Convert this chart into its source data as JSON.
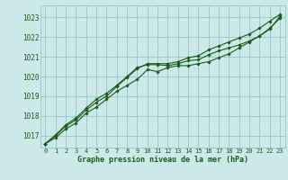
{
  "xlabel": "Graphe pression niveau de la mer (hPa)",
  "bg_color": "#cce8e8",
  "plot_bg_color": "#cce8e8",
  "grid_color": "#99cccc",
  "line_color": "#1a5c1a",
  "text_color": "#1a5c1a",
  "xlim": [
    -0.5,
    23.5
  ],
  "ylim": [
    1016.4,
    1023.6
  ],
  "yticks": [
    1017,
    1018,
    1019,
    1020,
    1021,
    1022,
    1023
  ],
  "xticks": [
    0,
    1,
    2,
    3,
    4,
    5,
    6,
    7,
    8,
    9,
    10,
    11,
    12,
    13,
    14,
    15,
    16,
    17,
    18,
    19,
    20,
    21,
    22,
    23
  ],
  "series": [
    [
      1016.6,
      1016.9,
      1017.35,
      1017.65,
      1018.15,
      1018.45,
      1018.85,
      1019.25,
      1019.55,
      1019.85,
      1020.35,
      1020.25,
      1020.45,
      1020.55,
      1020.55,
      1020.65,
      1020.75,
      1020.95,
      1021.15,
      1021.45,
      1021.75,
      1022.05,
      1022.45,
      1022.95
    ],
    [
      1016.6,
      1017.0,
      1017.5,
      1017.8,
      1018.3,
      1018.7,
      1019.0,
      1019.5,
      1019.95,
      1020.4,
      1020.65,
      1020.65,
      1020.65,
      1020.75,
      1020.95,
      1021.05,
      1021.35,
      1021.55,
      1021.75,
      1021.95,
      1022.15,
      1022.45,
      1022.8,
      1023.15
    ],
    [
      1016.6,
      1017.05,
      1017.55,
      1017.9,
      1018.4,
      1018.85,
      1019.15,
      1019.55,
      1020.0,
      1020.45,
      1020.6,
      1020.6,
      1020.55,
      1020.65,
      1020.8,
      1020.85,
      1021.1,
      1021.3,
      1021.45,
      1021.6,
      1021.8,
      1022.05,
      1022.4,
      1023.05
    ]
  ]
}
